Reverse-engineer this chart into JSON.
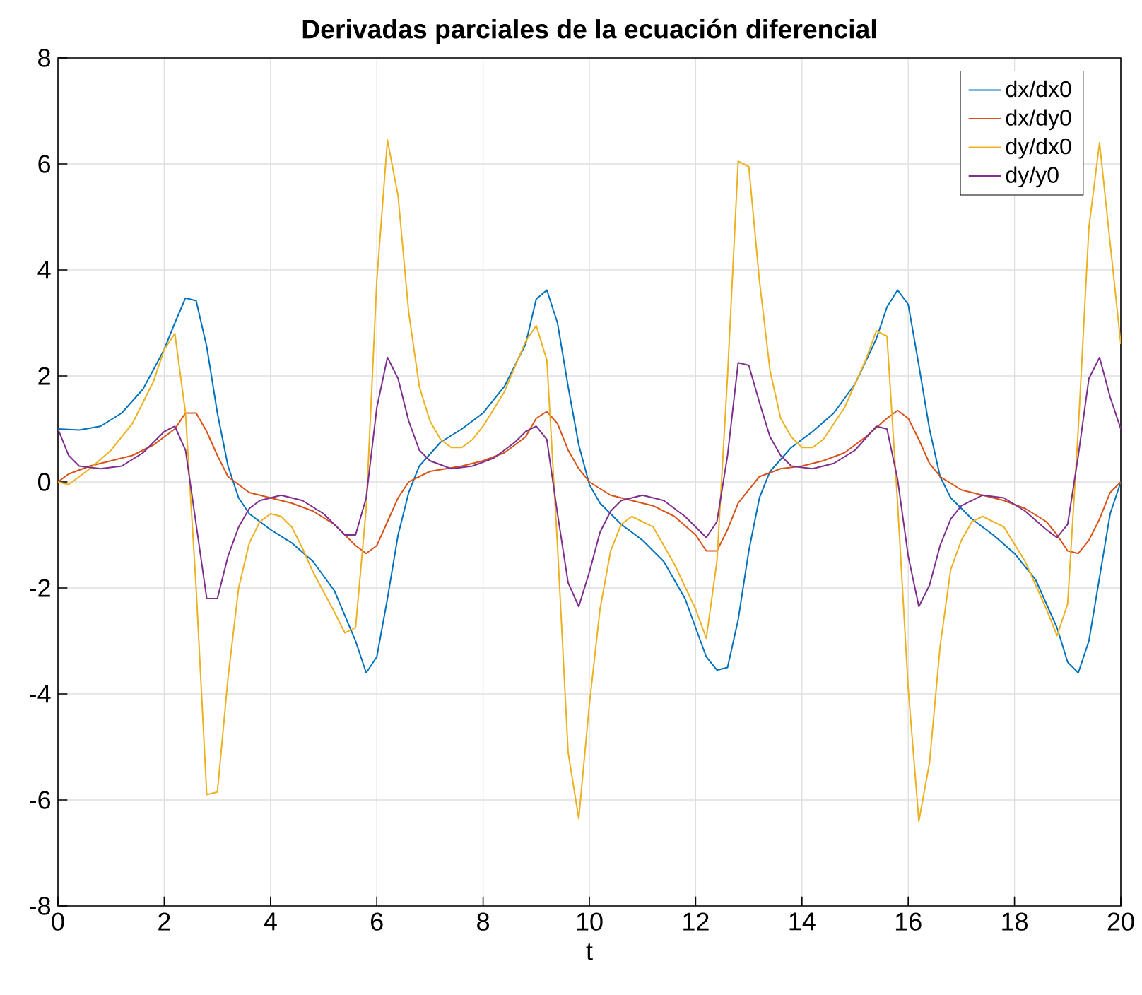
{
  "chart_data": {
    "type": "line",
    "title": "Derivadas parciales de la ecuación diferencial",
    "xlabel": "t",
    "xlim": [
      0,
      20
    ],
    "ylim": [
      -8,
      8
    ],
    "xticks": [
      0,
      2,
      4,
      6,
      8,
      10,
      12,
      14,
      16,
      18,
      20
    ],
    "yticks": [
      -8,
      -6,
      -4,
      -2,
      0,
      2,
      4,
      6,
      8
    ],
    "grid": true,
    "legend": "top right",
    "marker": "none",
    "line_style": "solid",
    "series": [
      {
        "name": "dx/dx0",
        "color": "#0072bd",
        "x": [
          0,
          0.4,
          0.8,
          1.2,
          1.6,
          2.0,
          2.2,
          2.4,
          2.6,
          2.8,
          3.0,
          3.2,
          3.4,
          3.6,
          4.0,
          4.4,
          4.8,
          5.2,
          5.6,
          5.8,
          6.0,
          6.2,
          6.4,
          6.6,
          6.8,
          7.2,
          7.6,
          8.0,
          8.4,
          8.8,
          9.0,
          9.2,
          9.4,
          9.6,
          9.8,
          10.0,
          10.2,
          10.6,
          11.0,
          11.4,
          11.8,
          12.2,
          12.4,
          12.6,
          12.8,
          13.0,
          13.2,
          13.4,
          13.8,
          14.2,
          14.6,
          15.0,
          15.4,
          15.6,
          15.8,
          16.0,
          16.2,
          16.4,
          16.6,
          16.8,
          17.2,
          17.6,
          18.0,
          18.4,
          18.8,
          19.0,
          19.2,
          19.4,
          19.6,
          19.8,
          20.0
        ],
        "values": [
          1.0,
          0.98,
          1.05,
          1.3,
          1.75,
          2.5,
          3.0,
          3.47,
          3.42,
          2.55,
          1.3,
          0.3,
          -0.3,
          -0.6,
          -0.9,
          -1.15,
          -1.5,
          -2.05,
          -3.0,
          -3.6,
          -3.3,
          -2.2,
          -1.0,
          -0.2,
          0.3,
          0.75,
          1.0,
          1.3,
          1.8,
          2.6,
          3.45,
          3.62,
          3.0,
          1.8,
          0.7,
          -0.05,
          -0.4,
          -0.8,
          -1.1,
          -1.5,
          -2.2,
          -3.3,
          -3.55,
          -3.5,
          -2.6,
          -1.3,
          -0.3,
          0.2,
          0.65,
          0.95,
          1.3,
          1.85,
          2.7,
          3.3,
          3.62,
          3.35,
          2.2,
          1.0,
          0.1,
          -0.3,
          -0.7,
          -1.0,
          -1.35,
          -1.85,
          -2.75,
          -3.4,
          -3.6,
          -3.0,
          -1.8,
          -0.6,
          0.0
        ]
      },
      {
        "name": "dx/dy0",
        "color": "#d95319",
        "x": [
          0,
          0.2,
          0.6,
          1.0,
          1.4,
          1.8,
          2.2,
          2.4,
          2.6,
          2.8,
          3.0,
          3.2,
          3.6,
          4.0,
          4.4,
          4.8,
          5.2,
          5.6,
          5.8,
          6.0,
          6.2,
          6.4,
          6.6,
          7.0,
          7.6,
          8.0,
          8.4,
          8.8,
          9.0,
          9.2,
          9.4,
          9.6,
          9.8,
          10.0,
          10.4,
          10.8,
          11.2,
          11.6,
          12.0,
          12.2,
          12.4,
          12.6,
          12.8,
          13.2,
          13.6,
          14.0,
          14.4,
          14.8,
          15.2,
          15.6,
          15.8,
          16.0,
          16.2,
          16.4,
          16.6,
          17.0,
          17.4,
          17.8,
          18.2,
          18.6,
          18.8,
          19.0,
          19.2,
          19.4,
          19.6,
          19.8,
          20.0
        ],
        "values": [
          0,
          0.15,
          0.3,
          0.4,
          0.5,
          0.7,
          1.0,
          1.3,
          1.3,
          0.95,
          0.5,
          0.1,
          -0.2,
          -0.3,
          -0.4,
          -0.55,
          -0.8,
          -1.2,
          -1.35,
          -1.2,
          -0.75,
          -0.3,
          0.0,
          0.2,
          0.3,
          0.4,
          0.55,
          0.85,
          1.2,
          1.33,
          1.1,
          0.6,
          0.25,
          0.0,
          -0.25,
          -0.35,
          -0.45,
          -0.65,
          -1.0,
          -1.3,
          -1.3,
          -0.9,
          -0.4,
          0.1,
          0.25,
          0.3,
          0.4,
          0.55,
          0.85,
          1.2,
          1.35,
          1.2,
          0.8,
          0.35,
          0.1,
          -0.15,
          -0.25,
          -0.35,
          -0.5,
          -0.75,
          -1.0,
          -1.3,
          -1.35,
          -1.1,
          -0.7,
          -0.2,
          0.0
        ]
      },
      {
        "name": "dy/dx0",
        "color": "#edb120",
        "x": [
          0,
          0.2,
          0.6,
          1.0,
          1.4,
          1.8,
          2.0,
          2.2,
          2.4,
          2.6,
          2.8,
          3.0,
          3.2,
          3.4,
          3.6,
          3.8,
          4.0,
          4.2,
          4.4,
          4.6,
          4.8,
          5.2,
          5.4,
          5.6,
          5.8,
          6.0,
          6.2,
          6.4,
          6.6,
          6.8,
          7.0,
          7.2,
          7.4,
          7.6,
          7.8,
          8.0,
          8.4,
          8.8,
          9.0,
          9.2,
          9.4,
          9.6,
          9.8,
          10.0,
          10.2,
          10.4,
          10.6,
          10.8,
          11.2,
          11.6,
          12.0,
          12.2,
          12.4,
          12.6,
          12.8,
          13.0,
          13.2,
          13.4,
          13.6,
          13.8,
          14.0,
          14.2,
          14.4,
          14.8,
          15.2,
          15.4,
          15.6,
          15.8,
          16.0,
          16.2,
          16.4,
          16.6,
          16.8,
          17.0,
          17.2,
          17.4,
          17.8,
          18.2,
          18.6,
          18.8,
          19.0,
          19.2,
          19.4,
          19.6,
          19.8,
          20.0
        ],
        "values": [
          0,
          -0.05,
          0.25,
          0.6,
          1.1,
          1.9,
          2.5,
          2.8,
          1.3,
          -2.0,
          -5.9,
          -5.85,
          -3.7,
          -2.0,
          -1.15,
          -0.75,
          -0.6,
          -0.65,
          -0.85,
          -1.25,
          -1.7,
          -2.45,
          -2.85,
          -2.75,
          -0.5,
          3.8,
          6.45,
          5.4,
          3.2,
          1.8,
          1.15,
          0.8,
          0.65,
          0.65,
          0.8,
          1.05,
          1.7,
          2.65,
          2.95,
          2.3,
          -1.2,
          -5.1,
          -6.35,
          -4.2,
          -2.4,
          -1.3,
          -0.8,
          -0.65,
          -0.85,
          -1.55,
          -2.4,
          -2.95,
          -1.5,
          2.0,
          6.05,
          5.95,
          3.8,
          2.1,
          1.2,
          0.85,
          0.65,
          0.65,
          0.8,
          1.4,
          2.3,
          2.85,
          2.75,
          -0.4,
          -3.9,
          -6.4,
          -5.3,
          -3.1,
          -1.65,
          -1.1,
          -0.75,
          -0.65,
          -0.85,
          -1.5,
          -2.4,
          -2.9,
          -2.3,
          1.0,
          4.8,
          6.4,
          4.5,
          2.6
        ]
      },
      {
        "name": "dy/y0",
        "color": "#7e2f8e",
        "x": [
          0,
          0.2,
          0.4,
          0.8,
          1.2,
          1.6,
          2.0,
          2.2,
          2.4,
          2.6,
          2.8,
          3.0,
          3.2,
          3.4,
          3.6,
          3.8,
          4.2,
          4.6,
          5.0,
          5.4,
          5.6,
          5.8,
          6.0,
          6.2,
          6.4,
          6.6,
          6.8,
          7.0,
          7.4,
          7.8,
          8.2,
          8.6,
          8.8,
          9.0,
          9.2,
          9.4,
          9.6,
          9.8,
          10.0,
          10.2,
          10.4,
          10.6,
          11.0,
          11.4,
          11.8,
          12.2,
          12.4,
          12.6,
          12.8,
          13.0,
          13.2,
          13.4,
          13.6,
          13.8,
          14.2,
          14.6,
          15.0,
          15.4,
          15.6,
          15.8,
          16.0,
          16.2,
          16.4,
          16.6,
          16.8,
          17.0,
          17.4,
          17.8,
          18.2,
          18.6,
          18.8,
          19.0,
          19.2,
          19.4,
          19.6,
          19.8,
          20.0
        ],
        "values": [
          1.0,
          0.5,
          0.3,
          0.25,
          0.3,
          0.55,
          0.95,
          1.05,
          0.6,
          -0.8,
          -2.2,
          -2.2,
          -1.4,
          -0.85,
          -0.5,
          -0.35,
          -0.25,
          -0.35,
          -0.6,
          -1.0,
          -1.0,
          -0.3,
          1.4,
          2.35,
          1.95,
          1.15,
          0.6,
          0.4,
          0.25,
          0.3,
          0.45,
          0.75,
          0.95,
          1.05,
          0.8,
          -0.6,
          -1.9,
          -2.35,
          -1.7,
          -0.95,
          -0.55,
          -0.35,
          -0.25,
          -0.35,
          -0.65,
          -1.05,
          -0.75,
          0.5,
          2.25,
          2.2,
          1.5,
          0.85,
          0.5,
          0.3,
          0.25,
          0.35,
          0.6,
          1.05,
          1.0,
          0.05,
          -1.4,
          -2.35,
          -1.95,
          -1.2,
          -0.7,
          -0.45,
          -0.25,
          -0.3,
          -0.55,
          -0.9,
          -1.05,
          -0.8,
          0.5,
          1.95,
          2.35,
          1.6,
          1.0
        ]
      }
    ]
  }
}
